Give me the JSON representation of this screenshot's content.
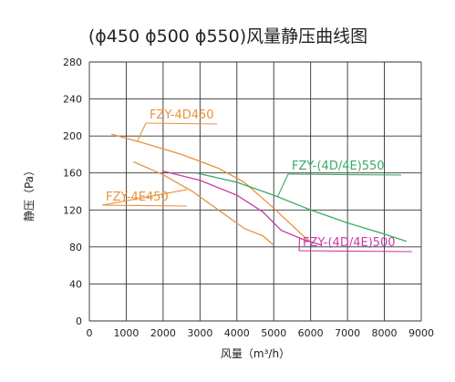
{
  "chart_data": {
    "type": "line",
    "title": "(ϕ450  ϕ500  ϕ550)风量静压曲线图",
    "xlabel": "风量（m³/h）",
    "ylabel": "静压（Pa）",
    "xlim": [
      0,
      9000
    ],
    "ylim": [
      0,
      280
    ],
    "xticks": [
      "0",
      "1000",
      "2000",
      "3000",
      "4000",
      "5000",
      "6000",
      "7000",
      "8000",
      "9000"
    ],
    "yticks": [
      "0",
      "40",
      "80",
      "120",
      "160",
      "200",
      "240",
      "280"
    ],
    "grid": true,
    "series": [
      {
        "name": "FZY-4D450",
        "color": "#e8923a",
        "x": [
          600,
          1500,
          2500,
          3500,
          4200,
          5000,
          5800,
          6000
        ],
        "y": [
          202,
          192,
          180,
          165,
          150,
          122,
          92,
          85
        ]
      },
      {
        "name": "FZY-4E450",
        "color": "#e8923a",
        "x": [
          1200,
          2000,
          2800,
          3500,
          4200,
          4700,
          5000
        ],
        "y": [
          172,
          158,
          140,
          120,
          100,
          92,
          82
        ]
      },
      {
        "name": "FZY-(4D/4E)550",
        "color": "#3aaa68",
        "x": [
          2900,
          4000,
          5000,
          6000,
          7000,
          8000,
          8600
        ],
        "y": [
          160,
          150,
          136,
          120,
          106,
          94,
          86
        ]
      },
      {
        "name": "FZY-(4D/4E)500",
        "color": "#cc3aa6",
        "x": [
          2000,
          3000,
          4000,
          4700,
          5200,
          5800,
          6300
        ],
        "y": [
          162,
          152,
          136,
          118,
          98,
          88,
          82
        ]
      }
    ]
  }
}
